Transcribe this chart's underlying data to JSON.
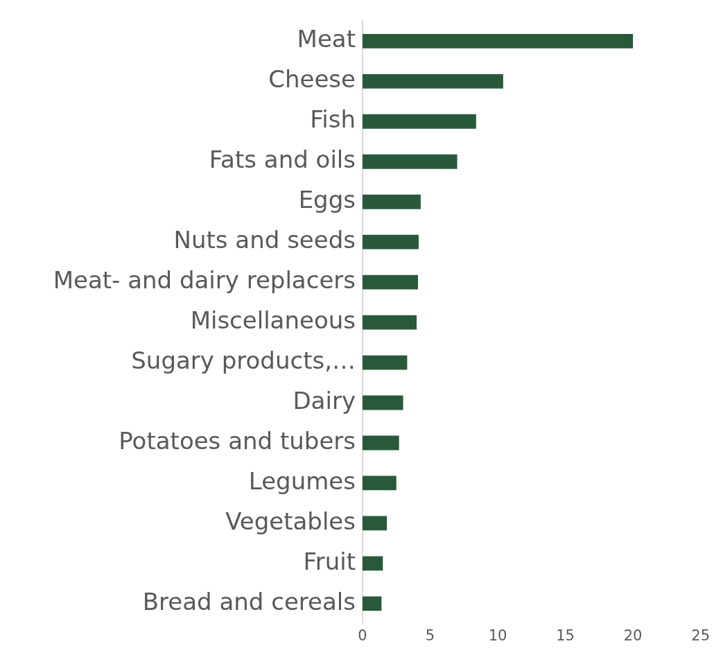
{
  "chart_data": {
    "type": "bar",
    "orientation": "horizontal",
    "categories": [
      "Meat",
      "Cheese",
      "Fish",
      "Fats and oils",
      "Eggs",
      "Nuts and seeds",
      "Meat- and dairy replacers",
      "Miscellaneous",
      "Sugary products,…",
      "Dairy",
      "Potatoes and tubers",
      "Legumes",
      "Vegetables",
      "Fruit",
      "Bread and cereals"
    ],
    "values": [
      20.0,
      10.4,
      8.4,
      7.0,
      4.3,
      4.15,
      4.1,
      4.0,
      3.3,
      3.0,
      2.7,
      2.5,
      1.8,
      1.5,
      1.4
    ],
    "color": "#285a3a",
    "xlim": [
      0,
      25
    ],
    "xticks": [
      0,
      5,
      10,
      15,
      20,
      25
    ],
    "grid": false,
    "legend": false
  }
}
